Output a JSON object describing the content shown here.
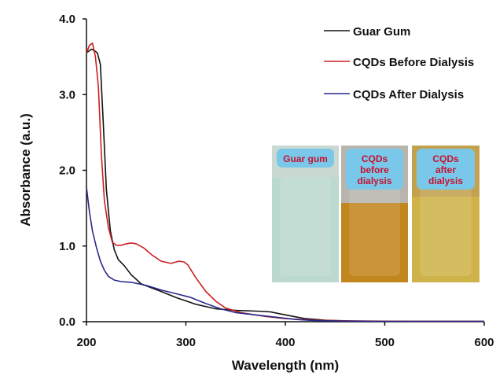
{
  "chart_data": {
    "type": "line",
    "xlabel": "Wavelength (nm)",
    "ylabel": "Absorbance (a.u.)",
    "xlim": [
      200,
      600
    ],
    "ylim": [
      0,
      4.0
    ],
    "xticks": [
      "200",
      "300",
      "400",
      "500",
      "600"
    ],
    "yticks": [
      "0.0",
      "1.0",
      "2.0",
      "3.0",
      "4.0"
    ],
    "grid": false,
    "legend_position": "top-right",
    "series": [
      {
        "name": "Guar Gum",
        "color": "#111111",
        "x": [
          200,
          205,
          208,
          211,
          214,
          217,
          220,
          224,
          228,
          232,
          238,
          245,
          255,
          265,
          275,
          290,
          310,
          330,
          350,
          370,
          385,
          400,
          420,
          440,
          460,
          500,
          550,
          600
        ],
        "y": [
          3.55,
          3.6,
          3.58,
          3.55,
          3.4,
          2.6,
          1.75,
          1.2,
          0.95,
          0.82,
          0.74,
          0.62,
          0.5,
          0.45,
          0.4,
          0.32,
          0.23,
          0.17,
          0.15,
          0.14,
          0.13,
          0.09,
          0.04,
          0.02,
          0.01,
          0.005,
          0.005,
          0.005
        ]
      },
      {
        "name": "CQDs Before Dialysis",
        "color": "#cc1f1f",
        "x": [
          200,
          203,
          206,
          209,
          212,
          215,
          218,
          222,
          226,
          230,
          235,
          240,
          245,
          250,
          258,
          266,
          275,
          285,
          293,
          298,
          302,
          310,
          320,
          330,
          340,
          355,
          380,
          400,
          430,
          470,
          530,
          600
        ],
        "y": [
          3.55,
          3.65,
          3.68,
          3.5,
          3.1,
          2.2,
          1.6,
          1.25,
          1.05,
          1.01,
          1.01,
          1.03,
          1.04,
          1.03,
          0.97,
          0.88,
          0.8,
          0.77,
          0.8,
          0.79,
          0.75,
          0.58,
          0.4,
          0.27,
          0.18,
          0.12,
          0.07,
          0.04,
          0.02,
          0.01,
          0.005,
          0.005
        ]
      },
      {
        "name": "CQDs After Dialysis",
        "color": "#2a2a8a",
        "x": [
          200,
          203,
          206,
          210,
          214,
          218,
          222,
          228,
          235,
          245,
          260,
          275,
          290,
          305,
          320,
          335,
          350,
          370,
          390,
          410,
          430,
          460,
          500,
          600
        ],
        "y": [
          1.78,
          1.45,
          1.2,
          0.98,
          0.8,
          0.68,
          0.6,
          0.55,
          0.53,
          0.52,
          0.48,
          0.42,
          0.37,
          0.32,
          0.24,
          0.17,
          0.12,
          0.09,
          0.06,
          0.03,
          0.015,
          0.008,
          0.005,
          0.005
        ]
      }
    ]
  },
  "inset": {
    "photos": [
      {
        "label_lines": [
          "Guar gum"
        ],
        "label_color": "#c8102e",
        "upper_color": "#c9d9d2",
        "lower_color": "#bcd9cf"
      },
      {
        "label_lines": [
          "CQDs",
          "before",
          "dialysis"
        ],
        "label_color": "#c8102e",
        "upper_color": "#b7b5ad",
        "lower_color": "#c2861f"
      },
      {
        "label_lines": [
          "CQDs",
          "after",
          "dialysis"
        ],
        "label_color": "#c8102e",
        "upper_color": "#c2a24f",
        "lower_color": "#cfb34a"
      }
    ],
    "label_bg": "#79c8ea"
  }
}
